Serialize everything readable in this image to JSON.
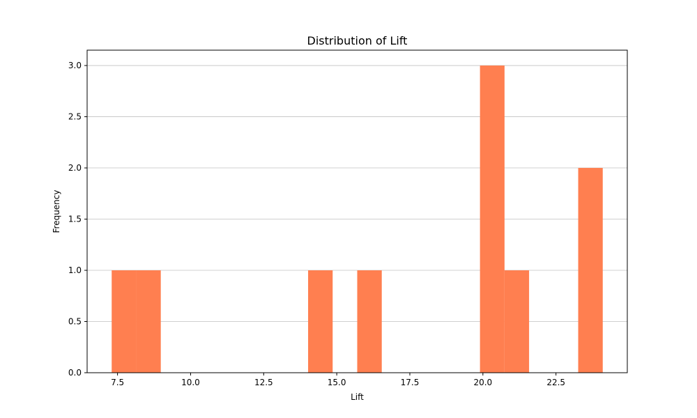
{
  "chart_data": {
    "type": "bar",
    "title": "Distribution of Lift",
    "xlabel": "Lift",
    "ylabel": "Frequency",
    "xlim": [
      6.46,
      24.94
    ],
    "ylim": [
      0,
      3.15
    ],
    "grid": "y",
    "bar_color": "#ff7f50",
    "bins": [
      {
        "start": 7.3,
        "end": 8.14,
        "count": 1
      },
      {
        "start": 8.14,
        "end": 8.98,
        "count": 1
      },
      {
        "start": 14.02,
        "end": 14.86,
        "count": 1
      },
      {
        "start": 15.7,
        "end": 16.54,
        "count": 1
      },
      {
        "start": 19.9,
        "end": 20.74,
        "count": 3
      },
      {
        "start": 20.74,
        "end": 21.58,
        "count": 1
      },
      {
        "start": 23.26,
        "end": 24.1,
        "count": 2
      }
    ],
    "xticks": [
      {
        "value": 7.5,
        "label": "7.5"
      },
      {
        "value": 10.0,
        "label": "10.0"
      },
      {
        "value": 12.5,
        "label": "12.5"
      },
      {
        "value": 15.0,
        "label": "15.0"
      },
      {
        "value": 17.5,
        "label": "17.5"
      },
      {
        "value": 20.0,
        "label": "20.0"
      },
      {
        "value": 22.5,
        "label": "22.5"
      }
    ],
    "yticks": [
      {
        "value": 0.0,
        "label": "0.0"
      },
      {
        "value": 0.5,
        "label": "0.5"
      },
      {
        "value": 1.0,
        "label": "1.0"
      },
      {
        "value": 1.5,
        "label": "1.5"
      },
      {
        "value": 2.0,
        "label": "2.0"
      },
      {
        "value": 2.5,
        "label": "2.5"
      },
      {
        "value": 3.0,
        "label": "3.0"
      }
    ]
  }
}
